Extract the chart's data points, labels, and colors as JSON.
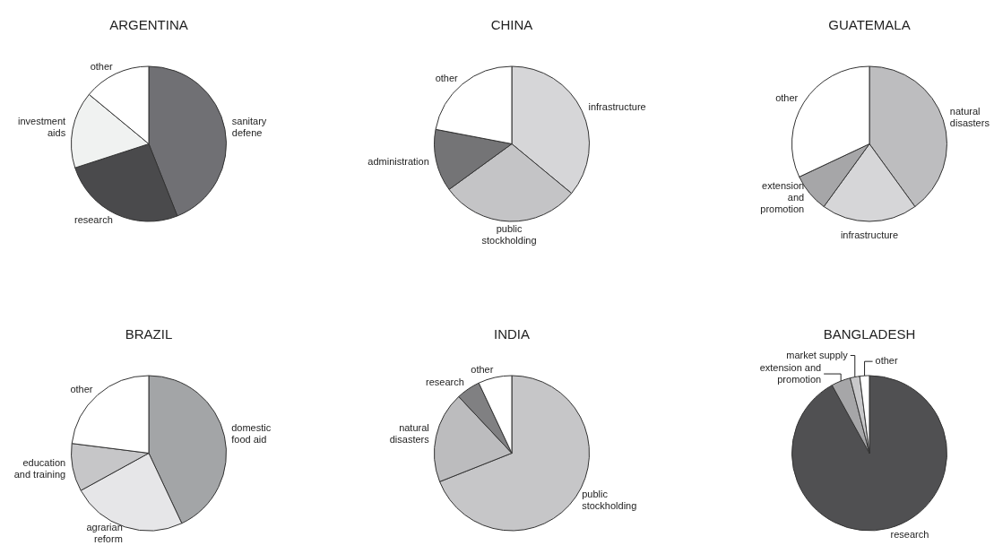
{
  "chart_data": [
    {
      "type": "pie",
      "title": "ARGENTINA",
      "categories": [
        "sanitary defene",
        "research",
        "investment aids",
        "other"
      ],
      "values": [
        44,
        26,
        16,
        14
      ],
      "colors": [
        "#707074",
        "#4a4a4c",
        "#f0f2f1",
        "#ffffff"
      ]
    },
    {
      "type": "pie",
      "title": "CHINA",
      "categories": [
        "infrastructure",
        "public stockholding",
        "administration",
        "other"
      ],
      "values": [
        36,
        29,
        13,
        22
      ],
      "colors": [
        "#d6d6d8",
        "#c4c4c6",
        "#747476",
        "#ffffff"
      ]
    },
    {
      "type": "pie",
      "title": "GUATEMALA",
      "categories": [
        "natural disasters",
        "infrastructure",
        "extension and promotion",
        "other"
      ],
      "values": [
        40,
        20,
        8,
        32
      ],
      "colors": [
        "#bdbdbf",
        "#d6d6d8",
        "#a6a6a8",
        "#ffffff"
      ]
    },
    {
      "type": "pie",
      "title": "BRAZIL",
      "categories": [
        "domestic food aid",
        "agrarian reform",
        "education and training",
        "other"
      ],
      "values": [
        43,
        24,
        10,
        23
      ],
      "colors": [
        "#a3a5a7",
        "#e6e6e8",
        "#c6c6c8",
        "#ffffff"
      ]
    },
    {
      "type": "pie",
      "title": "INDIA",
      "categories": [
        "public stockholding",
        "natural disasters",
        "research",
        "other"
      ],
      "values": [
        69,
        19,
        5,
        7
      ],
      "colors": [
        "#c6c6c8",
        "#bcbcbe",
        "#808082",
        "#ffffff"
      ]
    },
    {
      "type": "pie",
      "title": "BANGLADESH",
      "categories": [
        "research",
        "extension and promotion",
        "market supply",
        "other"
      ],
      "values": [
        92,
        4,
        2,
        2
      ],
      "colors": [
        "#505052",
        "#a6a6a8",
        "#c8c8ca",
        "#ffffff"
      ]
    }
  ]
}
